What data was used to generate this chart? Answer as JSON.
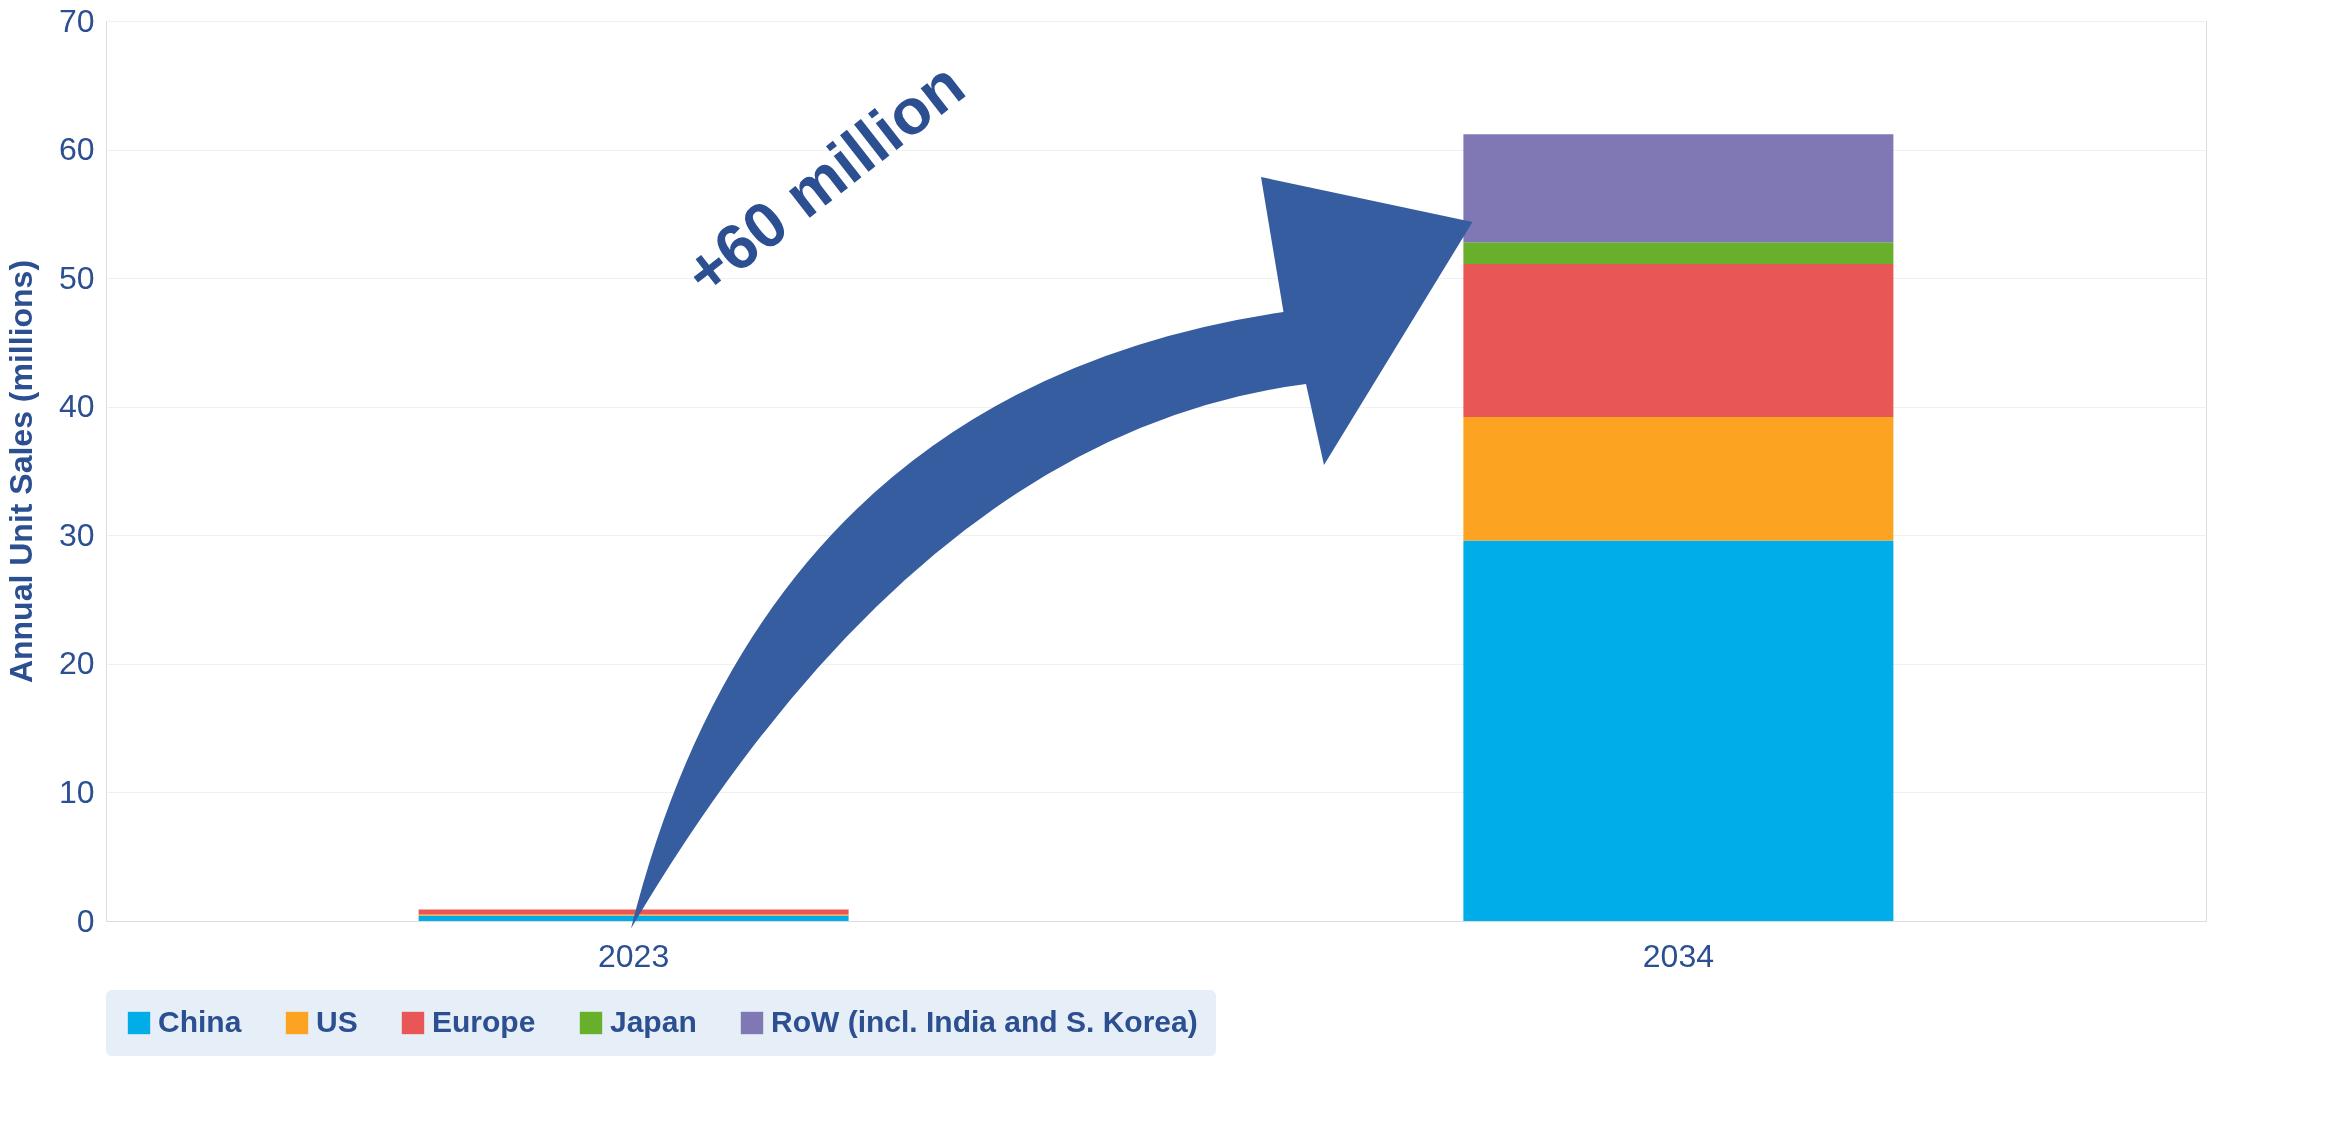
{
  "chart_data": {
    "type": "bar",
    "stacked": true,
    "ylabel": "Annual Unit Sales (millions)",
    "categories": [
      "2023",
      "2034"
    ],
    "series": [
      {
        "name": "China",
        "color": "#00ade8",
        "values": [
          0.4,
          29.6
        ]
      },
      {
        "name": "US",
        "color": "#fca321",
        "values": [
          0.1,
          9.6
        ]
      },
      {
        "name": "Europe",
        "color": "#e95656",
        "values": [
          0.4,
          11.9
        ]
      },
      {
        "name": "Japan",
        "color": "#68b02b",
        "values": [
          0,
          1.7
        ]
      },
      {
        "name": "RoW (incl. India and S. Korea)",
        "color": "#7f78b5",
        "values": [
          0,
          8.4
        ]
      }
    ],
    "ylim": [
      0,
      70
    ],
    "yticks": [
      0,
      10,
      20,
      30,
      40,
      50,
      60,
      70
    ],
    "grid": "y",
    "legend": "bottom",
    "annotations": [
      "+60 million"
    ]
  }
}
